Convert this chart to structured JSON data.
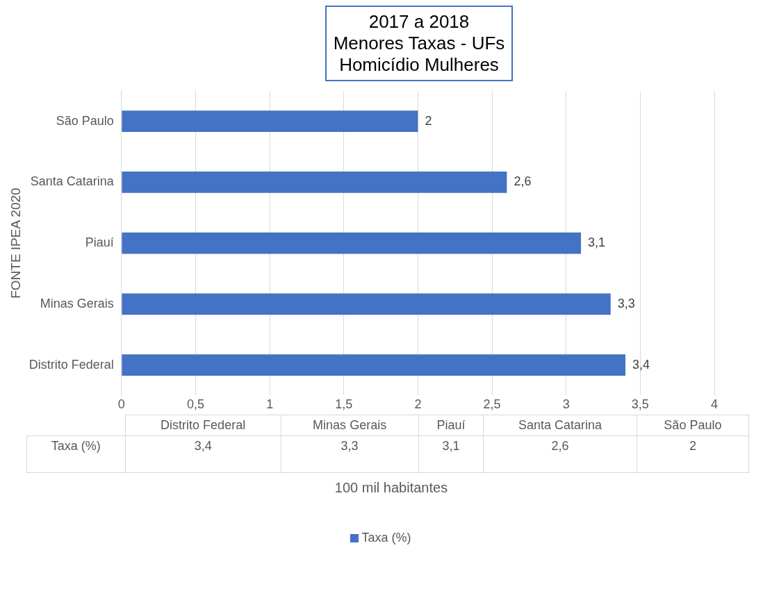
{
  "chart_data": {
    "type": "bar",
    "orientation": "horizontal",
    "title": "2017 a 2018\nMenores Taxas - UFs\nHomicídio Mulheres",
    "xlabel": "100 mil habitantes",
    "ylabel": "FONTE IPEA 2020",
    "categories": [
      "São Paulo",
      "Santa Catarina",
      "Piauí",
      "Minas Gerais",
      "Distrito Federal"
    ],
    "series": [
      {
        "name": "Taxa (%)",
        "color": "#4472c4",
        "values": [
          2,
          2.6,
          3.1,
          3.3,
          3.4
        ],
        "value_labels": [
          "2",
          "2,6",
          "3,1",
          "3,3",
          "3,4"
        ]
      }
    ],
    "xlim": [
      0,
      4
    ],
    "xticks": [
      0,
      {
        "value": 0.5,
        "label": "0,5"
      },
      1,
      {
        "value": 1.5,
        "label": "1,5"
      },
      2,
      {
        "value": 2.5,
        "label": "2,5"
      },
      3,
      {
        "value": 3.5,
        "label": "3,5"
      },
      4
    ],
    "grid": "x",
    "legend": "bottom"
  }
}
